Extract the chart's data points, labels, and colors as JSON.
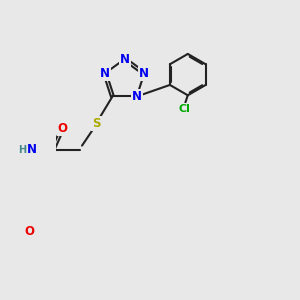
{
  "bg_color": "#e8e8e8",
  "bond_color": "#222222",
  "bond_width": 1.5,
  "dbo": 0.06,
  "atom_colors": {
    "N": "#0000ee",
    "O": "#ee0000",
    "S": "#aaaa00",
    "Cl": "#00aa00",
    "H": "#448888"
  },
  "fs": 8.5,
  "xlim": [
    -2.5,
    5.5
  ],
  "ylim": [
    -5.5,
    4.0
  ]
}
